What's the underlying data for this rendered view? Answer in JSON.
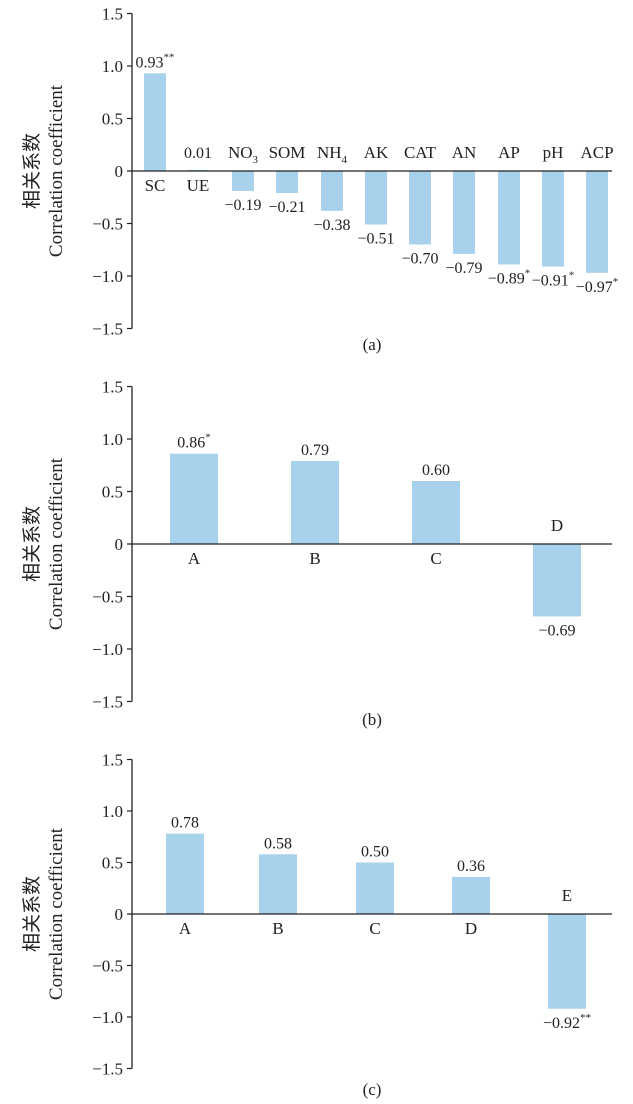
{
  "bar_color": "#a8d2ec",
  "axis_color": "#222222",
  "y_label_cn": "相关系数",
  "y_label_en": "Correlation coefficient",
  "chart_data": [
    {
      "type": "bar",
      "panel_label": "(a)",
      "ylim": [
        -1.5,
        1.5
      ],
      "yticks": [
        "1.5",
        "1.0",
        "0.5",
        "0",
        "−0.5",
        "−1.0",
        "−1.5"
      ],
      "categories": [
        {
          "base": "SC",
          "sub": ""
        },
        {
          "base": "UE",
          "sub": ""
        },
        {
          "base": "NO",
          "sub": "3"
        },
        {
          "base": "SOM",
          "sub": ""
        },
        {
          "base": "NH",
          "sub": "4"
        },
        {
          "base": "AK",
          "sub": ""
        },
        {
          "base": "CAT",
          "sub": ""
        },
        {
          "base": "AN",
          "sub": ""
        },
        {
          "base": "AP",
          "sub": ""
        },
        {
          "base": "pH",
          "sub": ""
        },
        {
          "base": "ACP",
          "sub": ""
        }
      ],
      "values": [
        0.93,
        0.01,
        -0.19,
        -0.21,
        -0.38,
        -0.51,
        -0.7,
        -0.79,
        -0.89,
        -0.91,
        -0.97
      ],
      "value_labels": [
        {
          "text": "0.93",
          "sig": "**"
        },
        {
          "text": "0.01",
          "sig": ""
        },
        {
          "text": "−0.19",
          "sig": ""
        },
        {
          "text": "−0.21",
          "sig": ""
        },
        {
          "text": "−0.38",
          "sig": ""
        },
        {
          "text": "−0.51",
          "sig": ""
        },
        {
          "text": "−0.70",
          "sig": ""
        },
        {
          "text": "−0.79",
          "sig": ""
        },
        {
          "text": "−0.89",
          "sig": "*"
        },
        {
          "text": "−0.91",
          "sig": "*"
        },
        {
          "text": "−0.97",
          "sig": "*"
        }
      ]
    },
    {
      "type": "bar",
      "panel_label": "(b)",
      "ylim": [
        -1.5,
        1.5
      ],
      "yticks": [
        "1.5",
        "1.0",
        "0.5",
        "0",
        "−0.5",
        "−1.0",
        "−1.5"
      ],
      "categories": [
        {
          "base": "A",
          "sub": ""
        },
        {
          "base": "B",
          "sub": ""
        },
        {
          "base": "C",
          "sub": ""
        },
        {
          "base": "D",
          "sub": ""
        }
      ],
      "values": [
        0.86,
        0.79,
        0.6,
        -0.69
      ],
      "value_labels": [
        {
          "text": "0.86",
          "sig": "*"
        },
        {
          "text": "0.79",
          "sig": ""
        },
        {
          "text": "0.60",
          "sig": ""
        },
        {
          "text": "−0.69",
          "sig": ""
        }
      ]
    },
    {
      "type": "bar",
      "panel_label": "(c)",
      "ylim": [
        -1.5,
        1.5
      ],
      "yticks": [
        "1.5",
        "1.0",
        "0.5",
        "0",
        "−0.5",
        "−1.0",
        "−1.5"
      ],
      "categories": [
        {
          "base": "A",
          "sub": ""
        },
        {
          "base": "B",
          "sub": ""
        },
        {
          "base": "C",
          "sub": ""
        },
        {
          "base": "D",
          "sub": ""
        },
        {
          "base": "E",
          "sub": ""
        }
      ],
      "values": [
        0.78,
        0.58,
        0.5,
        0.36,
        -0.92
      ],
      "value_labels": [
        {
          "text": "0.78",
          "sig": ""
        },
        {
          "text": "0.58",
          "sig": ""
        },
        {
          "text": "0.50",
          "sig": ""
        },
        {
          "text": "0.36",
          "sig": ""
        },
        {
          "text": "−0.92",
          "sig": "**"
        }
      ]
    }
  ]
}
